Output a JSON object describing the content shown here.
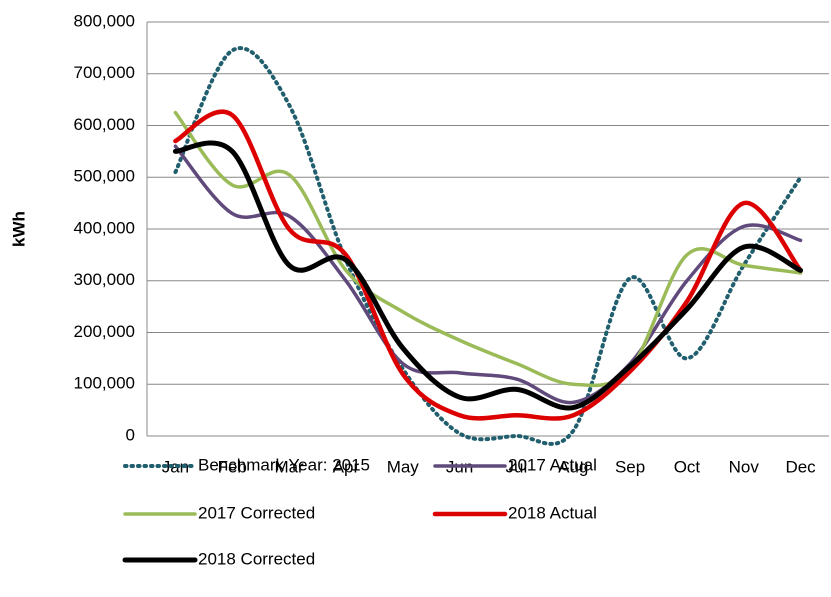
{
  "chart_data": {
    "type": "line",
    "y_label": "kWh",
    "categories": [
      "Jan",
      "Feb",
      "Mar",
      "Apr",
      "May",
      "Jun",
      "Jul",
      "Aug",
      "Sep",
      "Oct",
      "Nov",
      "Dec"
    ],
    "series": [
      {
        "name": "Benchmark Year: 2015",
        "color": "#215f6e",
        "dash": true,
        "width": 4,
        "values": [
          510000,
          745000,
          640000,
          340000,
          130000,
          5000,
          0,
          10000,
          305000,
          150000,
          330000,
          500000
        ]
      },
      {
        "name": "2017 Actual",
        "color": "#604a7b",
        "width": 3.5,
        "values": [
          560000,
          430000,
          425000,
          300000,
          140000,
          122000,
          110000,
          65000,
          140000,
          300000,
          405000,
          378000
        ]
      },
      {
        "name": "2017 Corrected",
        "color": "#9bbb59",
        "width": 3.5,
        "values": [
          625000,
          485000,
          505000,
          320000,
          240000,
          185000,
          140000,
          100000,
          130000,
          350000,
          330000,
          315000
        ]
      },
      {
        "name": "2018 Actual",
        "color": "#dd0000",
        "width": 4.5,
        "values": [
          570000,
          620000,
          400000,
          350000,
          120000,
          40000,
          40000,
          40000,
          125000,
          260000,
          450000,
          320000
        ]
      },
      {
        "name": "2018 Corrected",
        "color": "#000000",
        "width": 5,
        "values": [
          550000,
          550000,
          330000,
          340000,
          170000,
          75000,
          90000,
          55000,
          135000,
          245000,
          365000,
          320000
        ]
      }
    ],
    "ylim": [
      0,
      800000
    ],
    "yticks": [
      0,
      {
        "value": 100000,
        "label": "100,000"
      },
      {
        "value": 200000,
        "label": "200,000"
      },
      {
        "value": 300000,
        "label": "300,000"
      },
      {
        "value": 400000,
        "label": "400,000"
      },
      {
        "value": 500000,
        "label": "500,000"
      },
      {
        "value": 600000,
        "label": "600,000"
      },
      {
        "value": 700000,
        "label": "700,000"
      },
      {
        "value": 800000,
        "label": "800,000"
      }
    ],
    "grid": true,
    "legend": "bottom"
  }
}
